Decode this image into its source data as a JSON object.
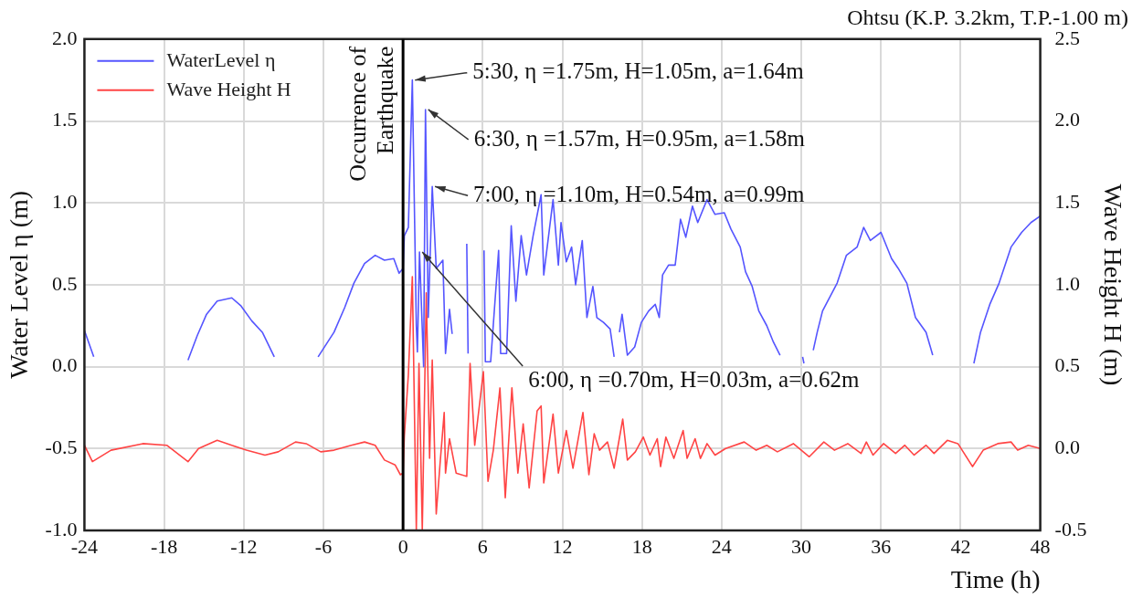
{
  "chart_data": {
    "type": "line",
    "title": "Ohtsu (K.P. 3.2km, T.P.-1.00 m)",
    "xlabel": "Time (h)",
    "ylabel": "Water Level η (m)",
    "y2label": "Wave Height H (m)",
    "xlim": [
      -24,
      48
    ],
    "xticks": [
      -24,
      -18,
      -12,
      -6,
      0,
      6,
      12,
      18,
      24,
      30,
      36,
      42,
      48
    ],
    "ylim": [
      -1.0,
      2.0
    ],
    "yticks": [
      {
        "value": -1,
        "label": "-1.0"
      },
      {
        "value": -0.5,
        "label": "-0.5"
      },
      {
        "value": 0,
        "label": "0.0"
      },
      {
        "value": 0.5,
        "label": "0.5"
      },
      {
        "value": 1,
        "label": "1.0"
      },
      {
        "value": 1.5,
        "label": "1.5"
      },
      {
        "value": 2,
        "label": "2.0"
      }
    ],
    "y2lim": [
      -0.5,
      2.5
    ],
    "y2ticks": [
      {
        "value": -0.5,
        "label": "-0.5"
      },
      {
        "value": 0,
        "label": "0.0"
      },
      {
        "value": 0.5,
        "label": "0.5"
      },
      {
        "value": 1,
        "label": "1.0"
      },
      {
        "value": 1.5,
        "label": "1.5"
      },
      {
        "value": 2,
        "label": "2.0"
      },
      {
        "value": 2.5,
        "label": "2.5"
      }
    ],
    "grid": true,
    "legend": "top left",
    "marker": "none",
    "line_style": "solid",
    "series": [
      {
        "name": "WaterLevel η",
        "color": "#5555ff",
        "x": [
          -24,
          -23.3,
          -20,
          -16.2,
          -15.5,
          -14.8,
          -14.0,
          -12.9,
          -12.2,
          -11.4,
          -10.6,
          -9.7,
          -8,
          -6.4,
          -5.2,
          -4.4,
          -3.7,
          -2.9,
          -2.1,
          -1.4,
          -0.7,
          -0.3,
          0,
          0.1,
          0.4,
          0.7,
          1.0,
          1.08,
          1.24,
          1.55,
          1.69,
          1.9,
          2.2,
          2.5,
          3.0,
          3.2,
          3.5,
          3.7,
          4.2,
          4.8,
          4.9,
          5.5,
          6.1,
          6.2,
          6.6,
          7.2,
          7.35,
          7.8,
          8.15,
          8.5,
          8.9,
          9.3,
          9.8,
          10.4,
          10.6,
          11.3,
          11.7,
          11.9,
          12.3,
          12.7,
          13.0,
          13.5,
          13.85,
          14.3,
          14.6,
          15.1,
          15.6,
          15.9,
          16.1,
          16.3,
          16.5,
          16.9,
          17.45,
          17.95,
          18.5,
          19.0,
          19.3,
          19.55,
          20.0,
          20.5,
          20.9,
          21.3,
          21.8,
          22.2,
          22.9,
          23.5,
          24.2,
          24.7,
          25.4,
          25.8,
          26.3,
          26.8,
          27.4,
          27.9,
          28.4,
          29.2,
          30.1,
          30.2,
          30.5,
          30.9,
          31.2,
          31.6,
          32.7,
          33.4,
          34.2,
          34.7,
          35.2,
          36.0,
          36.8,
          37.3,
          37.95,
          38.6,
          39.4,
          39.9,
          41.5,
          43.0,
          43.5,
          44.2,
          44.9,
          45.8,
          46.6,
          47.3,
          48
        ],
        "values": [
          0.22,
          0.06,
          null,
          0.04,
          0.19,
          0.32,
          0.4,
          0.42,
          0.37,
          0.28,
          0.21,
          0.06,
          null,
          0.06,
          0.21,
          0.36,
          0.51,
          0.63,
          0.68,
          0.65,
          0.66,
          0.57,
          0.6,
          0.8,
          0.85,
          1.75,
          0.25,
          0.09,
          0.7,
          0.0,
          1.57,
          0.3,
          1.1,
          0.6,
          0.65,
          0.08,
          0.35,
          0.2,
          null,
          0.75,
          0.08,
          null,
          0.71,
          0.03,
          0.03,
          0.71,
          0.08,
          0.08,
          0.86,
          0.4,
          0.8,
          0.56,
          0.8,
          1.05,
          0.56,
          1.02,
          0.62,
          0.88,
          0.64,
          0.73,
          0.5,
          0.77,
          0.3,
          0.49,
          0.3,
          0.27,
          0.23,
          0.06,
          null,
          0.21,
          0.32,
          0.07,
          0.12,
          0.27,
          0.34,
          0.38,
          0.3,
          0.56,
          0.62,
          0.62,
          0.9,
          0.79,
          0.98,
          0.88,
          1.02,
          0.93,
          0.94,
          0.84,
          0.73,
          0.58,
          0.49,
          0.34,
          0.25,
          0.15,
          0.07,
          null,
          0.06,
          0.02,
          null,
          0.1,
          0.21,
          0.34,
          0.51,
          0.68,
          0.73,
          0.85,
          0.77,
          0.82,
          0.66,
          0.6,
          0.51,
          0.3,
          0.21,
          0.07,
          null,
          0.02,
          0.21,
          0.38,
          0.51,
          0.73,
          0.82,
          0.88,
          0.92
        ]
      },
      {
        "name": "Wave Height H",
        "color": "#ff4444",
        "axis": "y2",
        "x": [
          -24,
          -23.4,
          -22.0,
          -19.6,
          -17.8,
          -16.2,
          -15.4,
          -14.0,
          -12.9,
          -11.8,
          -10.4,
          -9.4,
          -8.1,
          -7.3,
          -6.2,
          -5.2,
          -3.9,
          -2.9,
          -2.1,
          -1.4,
          -0.6,
          -0.2,
          0,
          0.1,
          0.4,
          0.7,
          1.0,
          1.2,
          1.45,
          1.75,
          2.0,
          2.2,
          2.5,
          2.8,
          3.1,
          3.2,
          3.5,
          4.0,
          4.8,
          5.05,
          5.4,
          6.05,
          6.4,
          6.8,
          7.3,
          7.7,
          8.2,
          8.65,
          9.05,
          9.5,
          10.1,
          10.4,
          10.6,
          11.3,
          11.7,
          12.3,
          12.8,
          13.55,
          14.0,
          14.4,
          14.8,
          15.4,
          15.9,
          16.55,
          16.9,
          17.5,
          18.1,
          18.6,
          19.15,
          19.4,
          19.8,
          20.4,
          21.1,
          21.4,
          22.0,
          22.4,
          22.9,
          23.5,
          24.3,
          25.7,
          26.6,
          27.4,
          28.2,
          29.4,
          30.6,
          31.7,
          32.5,
          33.5,
          34.5,
          34.9,
          35.4,
          36.2,
          37.1,
          37.8,
          38.5,
          39.4,
          40.0,
          41.0,
          41.8,
          42.9,
          43.7,
          44.8,
          45.8,
          46.3,
          47.1,
          48
        ],
        "values": [
          0.02,
          -0.08,
          -0.01,
          0.03,
          0.02,
          -0.08,
          0.0,
          0.05,
          0.02,
          -0.01,
          -0.04,
          -0.02,
          0.04,
          0.03,
          -0.02,
          -0.01,
          0.02,
          0.04,
          0.02,
          -0.07,
          -0.1,
          -0.16,
          -0.15,
          0.08,
          0.45,
          1.05,
          -0.5,
          0.52,
          -0.5,
          0.95,
          -0.06,
          0.54,
          -0.4,
          -0.08,
          0.22,
          -0.15,
          0.06,
          -0.15,
          -0.17,
          0.52,
          0.02,
          0.47,
          -0.2,
          -0.01,
          0.37,
          -0.3,
          0.37,
          -0.15,
          0.15,
          -0.24,
          0.23,
          0.26,
          -0.21,
          0.21,
          -0.15,
          0.11,
          -0.12,
          0.22,
          -0.16,
          0.09,
          -0.01,
          0.04,
          -0.12,
          0.18,
          -0.07,
          -0.02,
          0.07,
          -0.04,
          0.06,
          -0.11,
          0.07,
          -0.06,
          0.11,
          -0.06,
          0.06,
          -0.06,
          0.03,
          -0.04,
          0.0,
          0.04,
          -0.01,
          0.02,
          -0.02,
          0.03,
          -0.05,
          0.04,
          -0.01,
          0.03,
          -0.03,
          0.04,
          -0.04,
          0.03,
          -0.03,
          0.02,
          -0.04,
          0.02,
          -0.03,
          0.05,
          0.03,
          -0.11,
          -0.01,
          0.03,
          0.04,
          -0.01,
          0.02,
          0.0
        ]
      }
    ],
    "ref_lines": [
      {
        "axis": "x",
        "value": 0,
        "label": "Occurrence of\nEarthquake",
        "color": "#000000"
      }
    ],
    "annotations": [
      {
        "text": "5:30, η =1.75m, H=1.05m, a=1.64m",
        "x": 0.7,
        "y": 1.75
      },
      {
        "text": "6:30, η =1.57m, H=0.95m, a=1.58m",
        "x": 1.69,
        "y": 1.57
      },
      {
        "text": "7:00, η =1.10m, H=0.54m, a=0.99m",
        "x": 2.2,
        "y": 1.1
      },
      {
        "text": "6:00, η =0.70m, H=0.03m, a=0.62m",
        "x": 1.24,
        "y": 0.7
      }
    ]
  }
}
